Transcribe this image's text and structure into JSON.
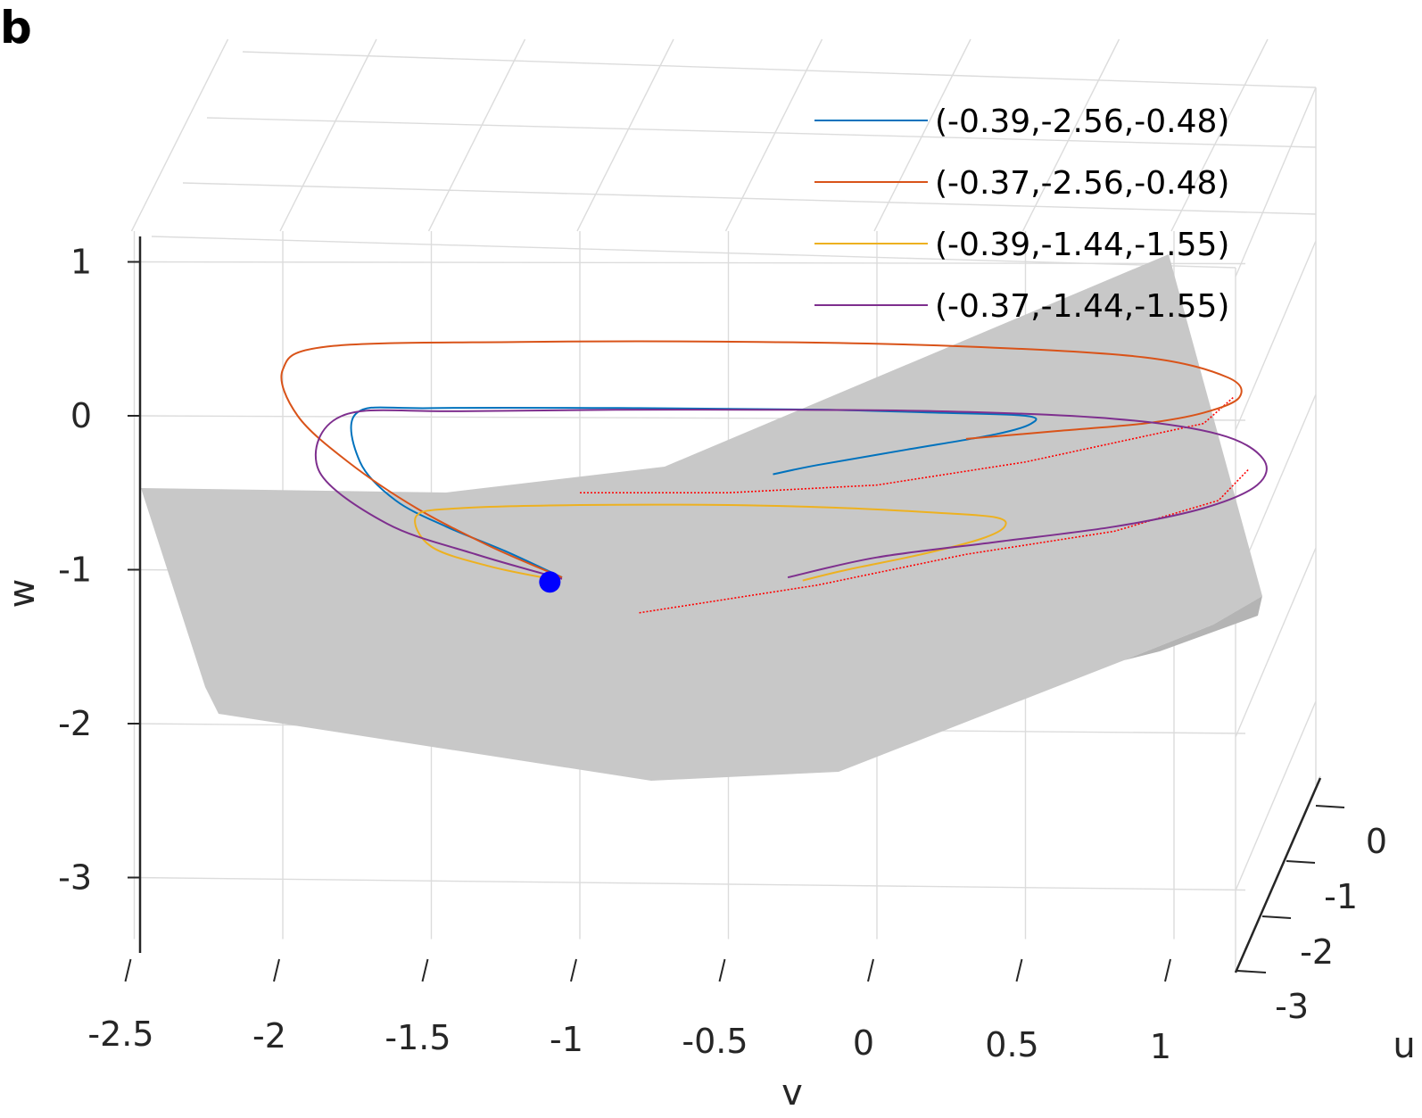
{
  "panel_label": "b",
  "chart_data": {
    "type": "line",
    "projection": "3d",
    "xlabel": "v",
    "ylabel": "u",
    "zlabel": "w",
    "xlim": [
      -2.5,
      1.0
    ],
    "ylim": [
      -3,
      0
    ],
    "zlim": [
      -3,
      1
    ],
    "xticks": [
      "-2.5",
      "-2",
      "-1.5",
      "-1",
      "-0.5",
      "0",
      "0.5",
      "1"
    ],
    "yticks": [
      "0",
      "-1",
      "-2",
      "-3"
    ],
    "zticks": [
      "1",
      "0",
      "-1",
      "-2",
      "-3"
    ],
    "grid": true,
    "legend_position": "top-right",
    "surface_color": "#c8c8c8",
    "equilibrium_point": {
      "v": -1.08,
      "w": -1.08,
      "color": "#0000ff"
    },
    "series": [
      {
        "name": "(-0.39,-2.56,-0.48)",
        "color": "#0072bd",
        "v": [
          -1.06,
          -1.25,
          -1.45,
          -1.62,
          -1.74,
          -1.75,
          -1.5,
          -0.8,
          -0.2,
          0.2,
          0.5,
          0.52,
          0.4,
          0.1,
          -0.2,
          -0.35
        ],
        "w": [
          -1.05,
          -0.88,
          -0.72,
          -0.55,
          -0.3,
          0.02,
          0.05,
          0.05,
          0.04,
          0.02,
          0.0,
          -0.05,
          -0.12,
          -0.22,
          -0.32,
          -0.38
        ]
      },
      {
        "name": "(-0.37,-2.56,-0.48)",
        "color": "#d95319",
        "v": [
          -1.06,
          -1.3,
          -1.55,
          -1.78,
          -1.95,
          -2.0,
          -1.85,
          -1.2,
          -0.4,
          0.3,
          0.9,
          1.18,
          1.22,
          1.1,
          0.9,
          0.6,
          0.3
        ],
        "w": [
          -1.05,
          -0.85,
          -0.6,
          -0.3,
          0.0,
          0.3,
          0.45,
          0.48,
          0.48,
          0.45,
          0.38,
          0.25,
          0.12,
          0.02,
          -0.05,
          -0.1,
          -0.15
        ]
      },
      {
        "name": "(-0.39,-1.44,-1.55)",
        "color": "#edb120",
        "v": [
          -1.07,
          -1.3,
          -1.5,
          -1.55,
          -1.4,
          -1.0,
          -0.5,
          -0.1,
          0.2,
          0.4,
          0.43,
          0.35,
          0.15,
          -0.1,
          -0.25
        ],
        "w": [
          -1.07,
          -0.98,
          -0.85,
          -0.65,
          -0.6,
          -0.58,
          -0.58,
          -0.6,
          -0.63,
          -0.66,
          -0.72,
          -0.8,
          -0.9,
          -1.0,
          -1.07
        ]
      },
      {
        "name": "(-0.37,-1.44,-1.55)",
        "color": "#7e2f8e",
        "v": [
          -1.06,
          -1.35,
          -1.65,
          -1.88,
          -1.8,
          -1.4,
          -0.6,
          0.2,
          0.8,
          1.15,
          1.3,
          1.28,
          1.1,
          0.8,
          0.4,
          0.0,
          -0.3
        ],
        "w": [
          -1.06,
          -0.9,
          -0.7,
          -0.35,
          0.0,
          0.03,
          0.04,
          0.03,
          -0.02,
          -0.12,
          -0.28,
          -0.45,
          -0.6,
          -0.72,
          -0.82,
          -0.92,
          -1.05
        ]
      }
    ],
    "dotted_red_curves": [
      {
        "color": "#ff0000",
        "v": [
          -1.0,
          -0.5,
          0.0,
          0.5,
          1.1,
          1.2
        ],
        "w": [
          -0.5,
          -0.5,
          -0.45,
          -0.3,
          -0.05,
          0.12
        ]
      },
      {
        "color": "#ff0000",
        "v": [
          -0.8,
          -0.2,
          0.3,
          0.8,
          1.15,
          1.25
        ],
        "w": [
          -1.28,
          -1.1,
          -0.9,
          -0.75,
          -0.55,
          -0.35
        ]
      }
    ]
  }
}
